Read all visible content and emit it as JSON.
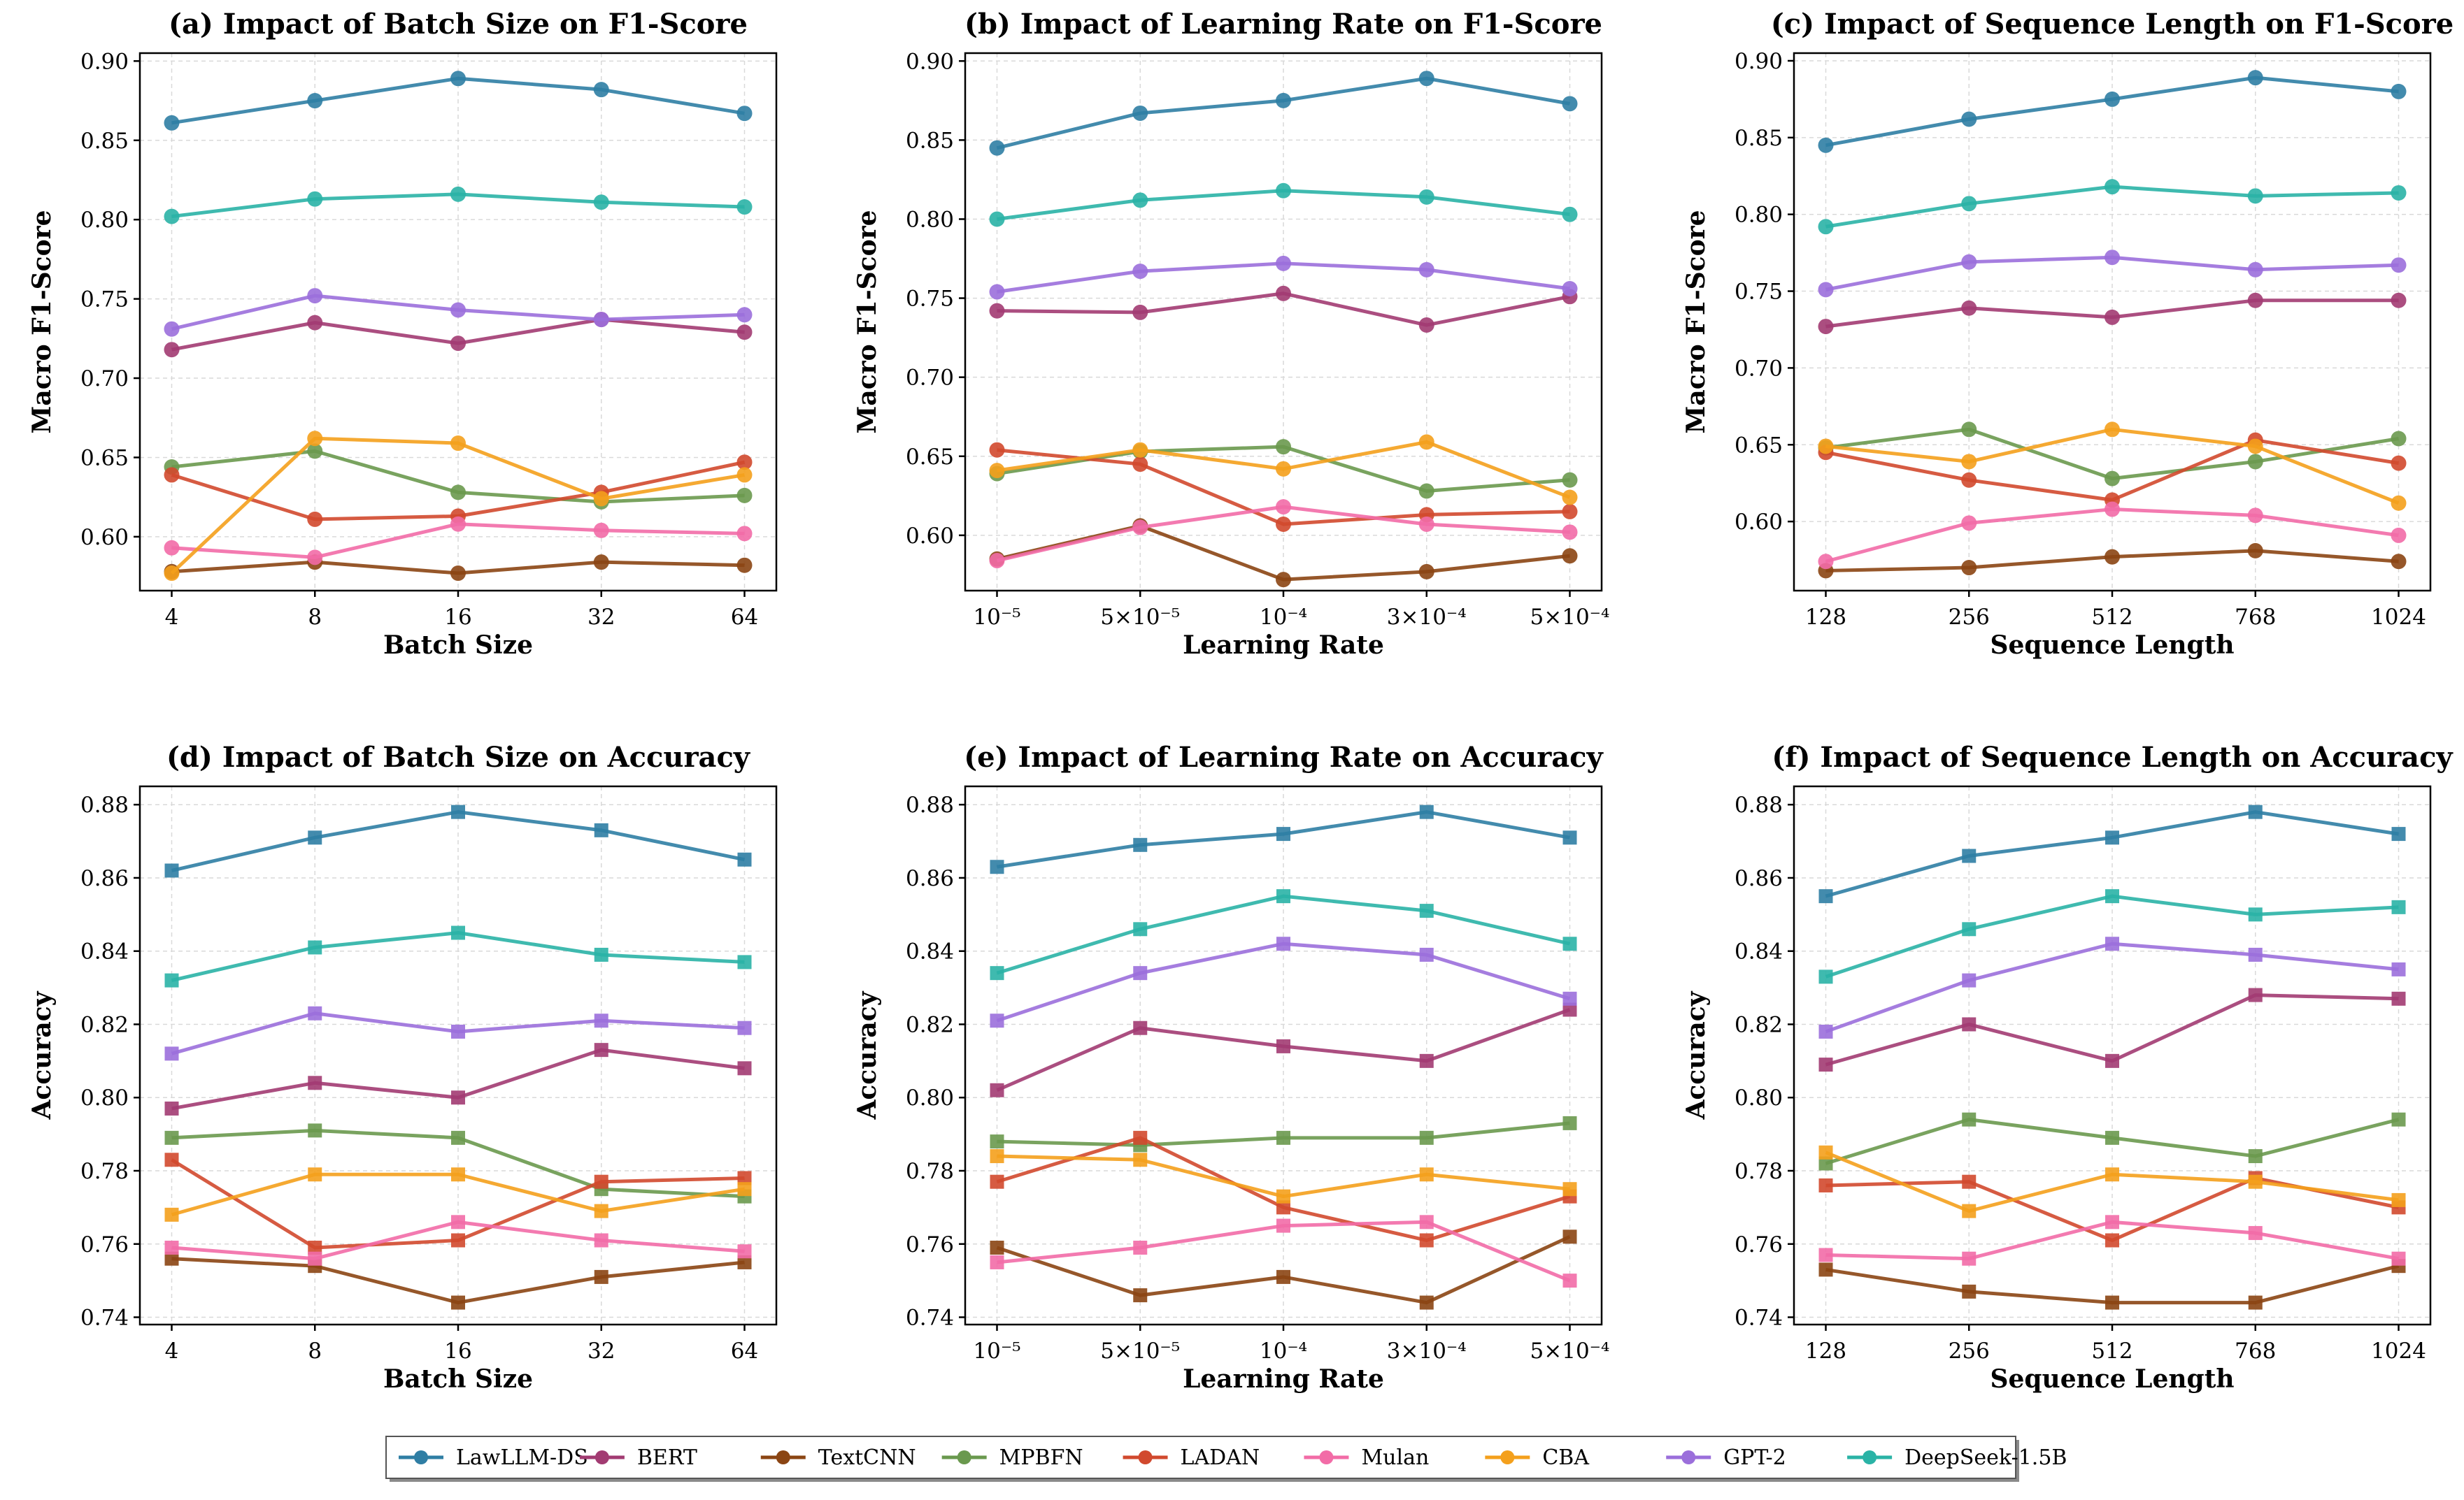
{
  "legend": [
    {
      "name": "LawLLM-DS",
      "color": "#2f7ea4"
    },
    {
      "name": "BERT",
      "color": "#a23b72"
    },
    {
      "name": "TextCNN",
      "color": "#8b4513"
    },
    {
      "name": "MPBFN",
      "color": "#6a994e"
    },
    {
      "name": "LADAN",
      "color": "#d1492e"
    },
    {
      "name": "Mulan",
      "color": "#f26ca7"
    },
    {
      "name": "CBA",
      "color": "#f4a01c"
    },
    {
      "name": "GPT-2",
      "color": "#9b6fdb"
    },
    {
      "name": "DeepSeek-1.5B",
      "color": "#2ab3a6"
    }
  ],
  "chart_data": [
    {
      "type": "line",
      "marker": "circle",
      "title": "(a) Impact of Batch Size on F1-Score",
      "xlabel": "Batch Size",
      "ylabel": "Macro F1-Score",
      "categories": [
        "4",
        "8",
        "16",
        "32",
        "64"
      ],
      "ylim": [
        0.566,
        0.905
      ],
      "yticks": [
        0.6,
        0.65,
        0.7,
        0.75,
        0.8,
        0.85,
        0.9
      ],
      "ytick_labels": [
        "0.60",
        "0.65",
        "0.70",
        "0.75",
        "0.80",
        "0.85",
        "0.90"
      ],
      "series": [
        {
          "name": "LawLLM-DS",
          "values": [
            0.861,
            0.875,
            0.889,
            0.882,
            0.867
          ]
        },
        {
          "name": "BERT",
          "values": [
            0.718,
            0.735,
            0.722,
            0.737,
            0.729
          ]
        },
        {
          "name": "TextCNN",
          "values": [
            0.578,
            0.584,
            0.577,
            0.584,
            0.582
          ]
        },
        {
          "name": "MPBFN",
          "values": [
            0.644,
            0.654,
            0.628,
            0.622,
            0.626
          ]
        },
        {
          "name": "LADAN",
          "values": [
            0.639,
            0.611,
            0.613,
            0.628,
            0.647
          ]
        },
        {
          "name": "Mulan",
          "values": [
            0.593,
            0.587,
            0.608,
            0.604,
            0.602
          ]
        },
        {
          "name": "CBA",
          "values": [
            0.577,
            0.662,
            0.659,
            0.624,
            0.639
          ]
        },
        {
          "name": "GPT-2",
          "values": [
            0.731,
            0.752,
            0.743,
            0.737,
            0.74
          ]
        },
        {
          "name": "DeepSeek-1.5B",
          "values": [
            0.802,
            0.813,
            0.816,
            0.811,
            0.808
          ]
        }
      ]
    },
    {
      "type": "line",
      "marker": "circle",
      "title": "(b) Impact of Learning Rate on F1-Score",
      "xlabel": "Learning Rate",
      "ylabel": "Macro F1-Score",
      "categories": [
        "10⁻⁵",
        "5×10⁻⁵",
        "10⁻⁴",
        "3×10⁻⁴",
        "5×10⁻⁴"
      ],
      "ylim": [
        0.565,
        0.905
      ],
      "yticks": [
        0.6,
        0.65,
        0.7,
        0.75,
        0.8,
        0.85,
        0.9
      ],
      "ytick_labels": [
        "0.60",
        "0.65",
        "0.70",
        "0.75",
        "0.80",
        "0.85",
        "0.90"
      ],
      "series": [
        {
          "name": "LawLLM-DS",
          "values": [
            0.845,
            0.867,
            0.875,
            0.889,
            0.873
          ]
        },
        {
          "name": "BERT",
          "values": [
            0.742,
            0.741,
            0.753,
            0.733,
            0.751
          ]
        },
        {
          "name": "TextCNN",
          "values": [
            0.585,
            0.606,
            0.572,
            0.577,
            0.587
          ]
        },
        {
          "name": "MPBFN",
          "values": [
            0.639,
            0.653,
            0.656,
            0.628,
            0.635
          ]
        },
        {
          "name": "LADAN",
          "values": [
            0.654,
            0.645,
            0.607,
            0.613,
            0.615
          ]
        },
        {
          "name": "Mulan",
          "values": [
            0.584,
            0.605,
            0.618,
            0.607,
            0.602
          ]
        },
        {
          "name": "CBA",
          "values": [
            0.641,
            0.654,
            0.642,
            0.659,
            0.624
          ]
        },
        {
          "name": "GPT-2",
          "values": [
            0.754,
            0.767,
            0.772,
            0.768,
            0.756
          ]
        },
        {
          "name": "DeepSeek-1.5B",
          "values": [
            0.8,
            0.812,
            0.818,
            0.814,
            0.803
          ]
        }
      ]
    },
    {
      "type": "line",
      "marker": "circle",
      "title": "(c) Impact of Sequence Length on F1-Score",
      "xlabel": "Sequence Length",
      "ylabel": "Macro F1-Score",
      "categories": [
        "128",
        "256",
        "512",
        "768",
        "1024"
      ],
      "ylim": [
        0.555,
        0.905
      ],
      "yticks": [
        0.6,
        0.65,
        0.7,
        0.75,
        0.8,
        0.85,
        0.9
      ],
      "ytick_labels": [
        "0.60",
        "0.65",
        "0.70",
        "0.75",
        "0.80",
        "0.85",
        "0.90"
      ],
      "series": [
        {
          "name": "LawLLM-DS",
          "values": [
            0.845,
            0.862,
            0.875,
            0.889,
            0.88
          ]
        },
        {
          "name": "BERT",
          "values": [
            0.727,
            0.739,
            0.733,
            0.744,
            0.744
          ]
        },
        {
          "name": "TextCNN",
          "values": [
            0.568,
            0.57,
            0.577,
            0.581,
            0.574
          ]
        },
        {
          "name": "MPBFN",
          "values": [
            0.648,
            0.66,
            0.628,
            0.639,
            0.654
          ]
        },
        {
          "name": "LADAN",
          "values": [
            0.645,
            0.627,
            0.614,
            0.653,
            0.638
          ]
        },
        {
          "name": "Mulan",
          "values": [
            0.574,
            0.599,
            0.608,
            0.604,
            0.591
          ]
        },
        {
          "name": "CBA",
          "values": [
            0.649,
            0.639,
            0.66,
            0.649,
            0.612
          ]
        },
        {
          "name": "GPT-2",
          "values": [
            0.751,
            0.769,
            0.772,
            0.764,
            0.767
          ]
        },
        {
          "name": "DeepSeek-1.5B",
          "values": [
            0.792,
            0.807,
            0.818,
            0.812,
            0.814
          ]
        }
      ]
    },
    {
      "type": "line",
      "marker": "square",
      "title": "(d) Impact of Batch Size on Accuracy",
      "xlabel": "Batch Size",
      "ylabel": "Accuracy",
      "categories": [
        "4",
        "8",
        "16",
        "32",
        "64"
      ],
      "ylim": [
        0.738,
        0.885
      ],
      "yticks": [
        0.74,
        0.76,
        0.78,
        0.8,
        0.82,
        0.84,
        0.86,
        0.88
      ],
      "ytick_labels": [
        "0.74",
        "0.76",
        "0.78",
        "0.80",
        "0.82",
        "0.84",
        "0.86",
        "0.88"
      ],
      "series": [
        {
          "name": "LawLLM-DS",
          "values": [
            0.862,
            0.871,
            0.878,
            0.873,
            0.865
          ]
        },
        {
          "name": "BERT",
          "values": [
            0.797,
            0.804,
            0.8,
            0.813,
            0.808
          ]
        },
        {
          "name": "TextCNN",
          "values": [
            0.756,
            0.754,
            0.744,
            0.751,
            0.755
          ]
        },
        {
          "name": "MPBFN",
          "values": [
            0.789,
            0.791,
            0.789,
            0.775,
            0.773
          ]
        },
        {
          "name": "LADAN",
          "values": [
            0.783,
            0.759,
            0.761,
            0.777,
            0.778
          ]
        },
        {
          "name": "Mulan",
          "values": [
            0.759,
            0.756,
            0.766,
            0.761,
            0.758
          ]
        },
        {
          "name": "CBA",
          "values": [
            0.768,
            0.779,
            0.779,
            0.769,
            0.775
          ]
        },
        {
          "name": "GPT-2",
          "values": [
            0.812,
            0.823,
            0.818,
            0.821,
            0.819
          ]
        },
        {
          "name": "DeepSeek-1.5B",
          "values": [
            0.832,
            0.841,
            0.845,
            0.839,
            0.837
          ]
        }
      ]
    },
    {
      "type": "line",
      "marker": "square",
      "title": "(e) Impact of Learning Rate on Accuracy",
      "xlabel": "Learning Rate",
      "ylabel": "Accuracy",
      "categories": [
        "10⁻⁵",
        "5×10⁻⁵",
        "10⁻⁴",
        "3×10⁻⁴",
        "5×10⁻⁴"
      ],
      "ylim": [
        0.738,
        0.885
      ],
      "yticks": [
        0.74,
        0.76,
        0.78,
        0.8,
        0.82,
        0.84,
        0.86,
        0.88
      ],
      "ytick_labels": [
        "0.74",
        "0.76",
        "0.78",
        "0.80",
        "0.82",
        "0.84",
        "0.86",
        "0.88"
      ],
      "series": [
        {
          "name": "LawLLM-DS",
          "values": [
            0.863,
            0.869,
            0.872,
            0.878,
            0.871
          ]
        },
        {
          "name": "BERT",
          "values": [
            0.802,
            0.819,
            0.814,
            0.81,
            0.824
          ]
        },
        {
          "name": "TextCNN",
          "values": [
            0.759,
            0.746,
            0.751,
            0.744,
            0.762
          ]
        },
        {
          "name": "MPBFN",
          "values": [
            0.788,
            0.787,
            0.789,
            0.789,
            0.793
          ]
        },
        {
          "name": "LADAN",
          "values": [
            0.777,
            0.789,
            0.77,
            0.761,
            0.773
          ]
        },
        {
          "name": "Mulan",
          "values": [
            0.755,
            0.759,
            0.765,
            0.766,
            0.75
          ]
        },
        {
          "name": "CBA",
          "values": [
            0.784,
            0.783,
            0.773,
            0.779,
            0.775
          ]
        },
        {
          "name": "GPT-2",
          "values": [
            0.821,
            0.834,
            0.842,
            0.839,
            0.827
          ]
        },
        {
          "name": "DeepSeek-1.5B",
          "values": [
            0.834,
            0.846,
            0.855,
            0.851,
            0.842
          ]
        }
      ]
    },
    {
      "type": "line",
      "marker": "square",
      "title": "(f) Impact of Sequence Length on Accuracy",
      "xlabel": "Sequence Length",
      "ylabel": "Accuracy",
      "categories": [
        "128",
        "256",
        "512",
        "768",
        "1024"
      ],
      "ylim": [
        0.738,
        0.885
      ],
      "yticks": [
        0.74,
        0.76,
        0.78,
        0.8,
        0.82,
        0.84,
        0.86,
        0.88
      ],
      "ytick_labels": [
        "0.74",
        "0.76",
        "0.78",
        "0.80",
        "0.82",
        "0.84",
        "0.86",
        "0.88"
      ],
      "series": [
        {
          "name": "LawLLM-DS",
          "values": [
            0.855,
            0.866,
            0.871,
            0.878,
            0.872
          ]
        },
        {
          "name": "BERT",
          "values": [
            0.809,
            0.82,
            0.81,
            0.828,
            0.827
          ]
        },
        {
          "name": "TextCNN",
          "values": [
            0.753,
            0.747,
            0.744,
            0.744,
            0.754
          ]
        },
        {
          "name": "MPBFN",
          "values": [
            0.782,
            0.794,
            0.789,
            0.784,
            0.794
          ]
        },
        {
          "name": "LADAN",
          "values": [
            0.776,
            0.777,
            0.761,
            0.778,
            0.77
          ]
        },
        {
          "name": "Mulan",
          "values": [
            0.757,
            0.756,
            0.766,
            0.763,
            0.756
          ]
        },
        {
          "name": "CBA",
          "values": [
            0.785,
            0.769,
            0.779,
            0.777,
            0.772
          ]
        },
        {
          "name": "GPT-2",
          "values": [
            0.818,
            0.832,
            0.842,
            0.839,
            0.835
          ]
        },
        {
          "name": "DeepSeek-1.5B",
          "values": [
            0.833,
            0.846,
            0.855,
            0.85,
            0.852
          ]
        }
      ]
    }
  ]
}
